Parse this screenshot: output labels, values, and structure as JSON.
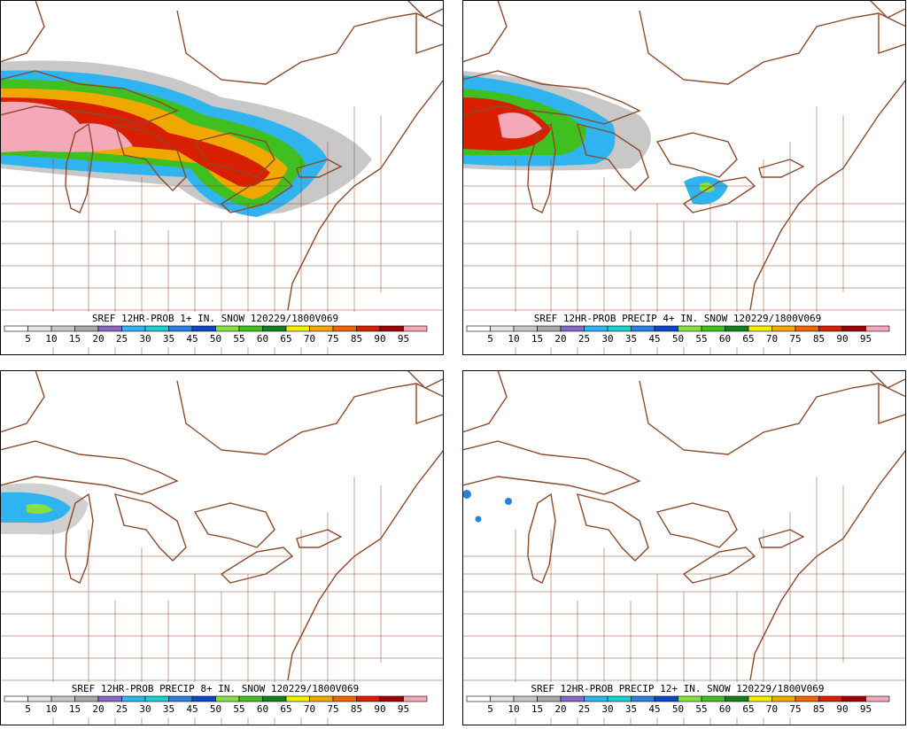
{
  "panels": [
    {
      "title": "SREF 12HR-PROB 1+ IN. SNOW 120229/1800V069"
    },
    {
      "title": "SREF 12HR-PROB PRECIP 4+ IN. SNOW 120229/1800V069"
    },
    {
      "title": "SREF 12HR-PROB PRECIP 8+ IN. SNOW 120229/1800V069"
    },
    {
      "title": "SREF 12HR-PROB PRECIP 12+ IN. SNOW 120229/1800V069"
    }
  ],
  "legend": {
    "labels": [
      5,
      10,
      15,
      20,
      25,
      30,
      35,
      45,
      50,
      55,
      60,
      65,
      70,
      75,
      85,
      90,
      95
    ],
    "colors": [
      "#ffffff",
      "#e4e4e4",
      "#c8c8c8",
      "#a8a8a8",
      "#8a68c8",
      "#30b4f0",
      "#18d2d2",
      "#2a80e0",
      "#0a48c8",
      "#88e040",
      "#40c020",
      "#128018",
      "#f0f000",
      "#f0a800",
      "#f06400",
      "#d82000",
      "#a00000",
      "#f4a8b8"
    ]
  }
}
